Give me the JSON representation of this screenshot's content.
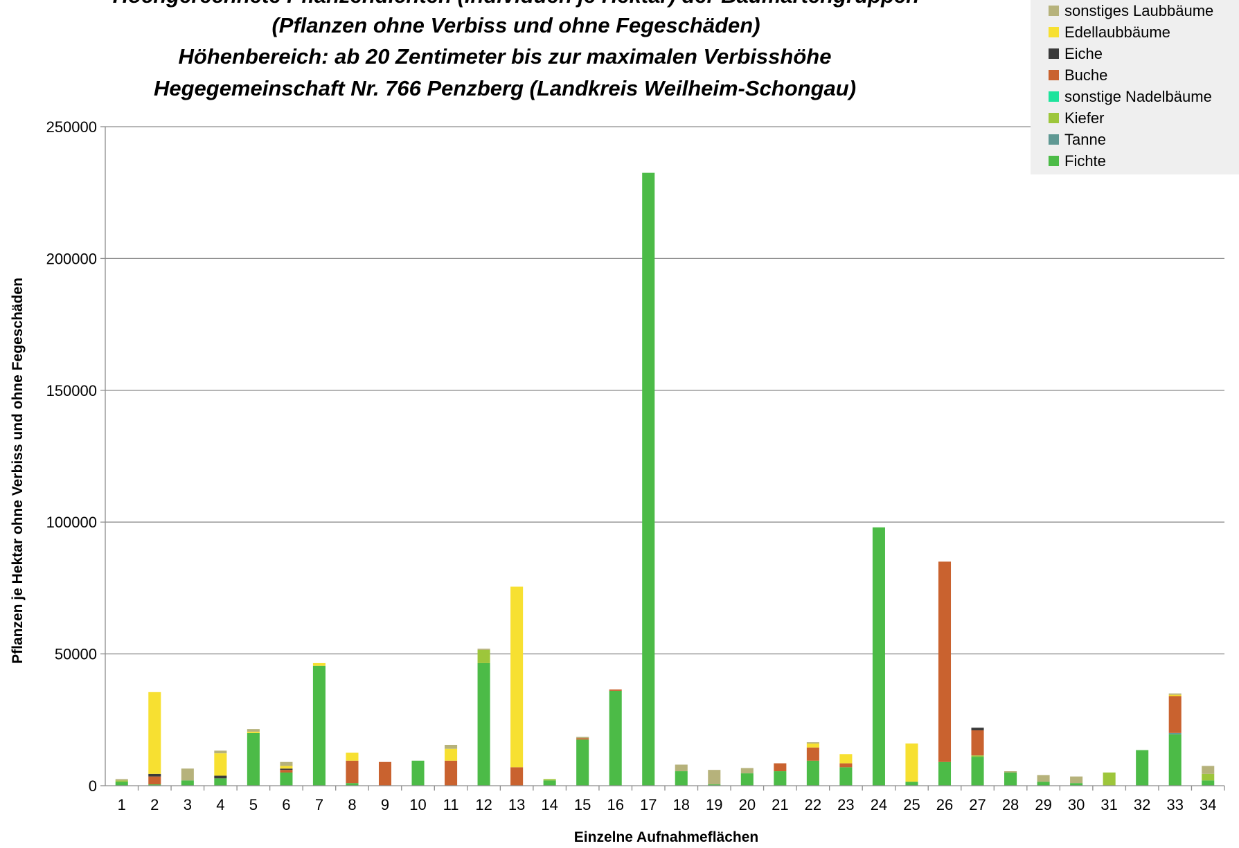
{
  "chart_data": {
    "type": "bar",
    "stacked": true,
    "title_lines": [
      "Hochgerechnete Pflanzendichten (Individuen je Hektar) der Baumartengruppen",
      "(Pflanzen ohne Verbiss und ohne Fegeschäden)",
      "Höhenbereich: ab 20 Zentimeter bis zur maximalen Verbisshöhe",
      "Hegegemeinschaft Nr. 766 Penzberg (Landkreis Weilheim-Schongau)"
    ],
    "xlabel": "Einzelne Aufnahmeflächen",
    "ylabel": "Pflanzen je Hektar ohne Verbiss und ohne Fegeschäden",
    "ylim": [
      0,
      250000
    ],
    "yticks": [
      0,
      50000,
      100000,
      150000,
      200000,
      250000
    ],
    "grid": true,
    "legend_position": "top-right",
    "categories": [
      "1",
      "2",
      "3",
      "4",
      "5",
      "6",
      "7",
      "8",
      "9",
      "10",
      "11",
      "12",
      "13",
      "14",
      "15",
      "16",
      "17",
      "18",
      "19",
      "20",
      "21",
      "22",
      "23",
      "24",
      "25",
      "26",
      "27",
      "28",
      "29",
      "30",
      "31",
      "32",
      "33",
      "34"
    ],
    "series": [
      {
        "name": "Fichte",
        "color": "#4cbb47",
        "values": [
          1500,
          500,
          2000,
          2800,
          20000,
          5000,
          45500,
          1000,
          0,
          9500,
          0,
          46500,
          0,
          2000,
          17500,
          36000,
          232500,
          5500,
          500,
          4700,
          5500,
          9500,
          7000,
          98000,
          1500,
          9000,
          11000,
          5000,
          1500,
          1000,
          0,
          13500,
          19500,
          2000
        ]
      },
      {
        "name": "Tanne",
        "color": "#5f9893",
        "values": [
          0,
          0,
          0,
          0,
          0,
          0,
          0,
          0,
          0,
          0,
          0,
          0,
          0,
          0,
          0,
          0,
          0,
          0,
          0,
          0,
          0,
          0,
          0,
          0,
          0,
          0,
          0,
          0,
          0,
          0,
          0,
          0,
          500,
          0
        ]
      },
      {
        "name": "Kiefer",
        "color": "#9dc63b",
        "values": [
          500,
          0,
          0,
          0,
          0,
          0,
          0,
          0,
          0,
          0,
          0,
          5000,
          0,
          500,
          0,
          0,
          0,
          0,
          0,
          0,
          0,
          0,
          0,
          0,
          0,
          0,
          500,
          0,
          0,
          0,
          5000,
          0,
          0,
          2500
        ]
      },
      {
        "name": "sonstige Nadelbäume",
        "color": "#1ee39c",
        "values": [
          0,
          0,
          0,
          0,
          0,
          0,
          0,
          0,
          0,
          0,
          0,
          0,
          0,
          0,
          0,
          0,
          0,
          0,
          0,
          0,
          0,
          0,
          0,
          0,
          0,
          0,
          0,
          0,
          0,
          0,
          0,
          0,
          0,
          0
        ]
      },
      {
        "name": "Buche",
        "color": "#c9622f",
        "values": [
          0,
          3000,
          0,
          0,
          0,
          1000,
          0,
          8500,
          9000,
          0,
          9500,
          0,
          7000,
          0,
          500,
          500,
          0,
          0,
          0,
          0,
          3000,
          5000,
          1500,
          0,
          0,
          76000,
          9500,
          0,
          0,
          0,
          0,
          0,
          14000,
          0
        ]
      },
      {
        "name": "Eiche",
        "color": "#3a3a3a",
        "values": [
          0,
          1000,
          0,
          1000,
          0,
          500,
          0,
          0,
          0,
          0,
          0,
          0,
          0,
          0,
          0,
          0,
          0,
          0,
          0,
          0,
          0,
          0,
          0,
          0,
          0,
          0,
          1000,
          0,
          0,
          0,
          0,
          0,
          0,
          0
        ]
      },
      {
        "name": "Edellaubbäume",
        "color": "#f7e031",
        "values": [
          0,
          31000,
          0,
          8500,
          500,
          1000,
          1000,
          3000,
          0,
          0,
          4500,
          0,
          68500,
          0,
          0,
          0,
          0,
          0,
          0,
          0,
          0,
          1500,
          3500,
          0,
          14500,
          0,
          0,
          0,
          0,
          0,
          0,
          0,
          500,
          0
        ]
      },
      {
        "name": "sonstiges Laubbäume",
        "color": "#b6b27b",
        "values": [
          500,
          0,
          4500,
          1000,
          1000,
          1500,
          0,
          0,
          0,
          0,
          1500,
          500,
          0,
          0,
          500,
          0,
          0,
          2500,
          5500,
          2000,
          0,
          500,
          0,
          0,
          0,
          0,
          0,
          500,
          2500,
          2500,
          0,
          0,
          500,
          3000
        ]
      }
    ]
  }
}
